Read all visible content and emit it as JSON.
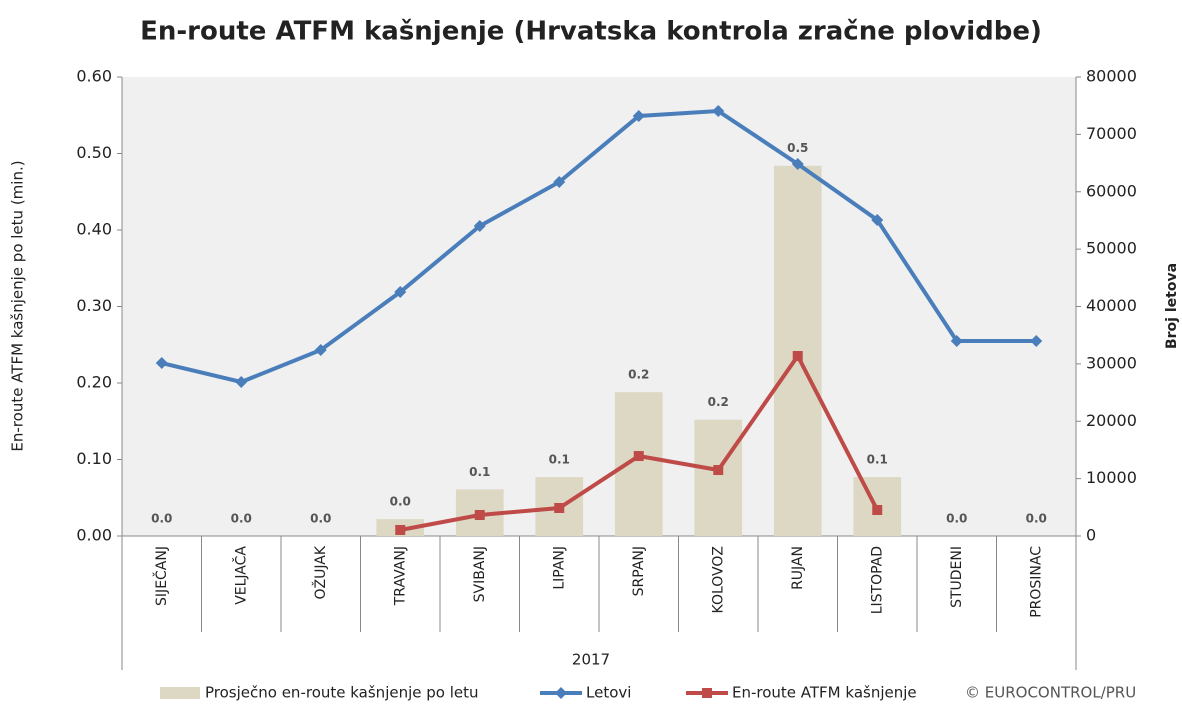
{
  "chart_data": {
    "type": "bar",
    "title": "En-route ATFM kašnjenje (Hrvatska kontrola zračne plovidbe)",
    "ylabel": "En-route ATFM kašnjenje po letu (min.)",
    "y2label": "Broj letova",
    "group_label": "2017",
    "footer": "© EUROCONTROL/PRU",
    "categories": [
      "SIJEČANJ",
      "VELJAČA",
      "OŽUJAK",
      "TRAVANJ",
      "SVIBANJ",
      "LIPANJ",
      "SRPANJ",
      "KOLOVOZ",
      "RUJAN",
      "LISTOPAD",
      "STUDENI",
      "PROSINAC"
    ],
    "series": [
      {
        "name": "Prosječno en-route kašnjenje po letu",
        "type": "bar",
        "color": "#ddd8c4",
        "values": [
          0,
          0,
          0,
          0.022,
          0.061,
          0.077,
          0.188,
          0.152,
          0.484,
          0.077,
          0,
          0
        ],
        "value_labels": [
          "0.0",
          "0.0",
          "0.0",
          "0.0",
          "0.1",
          "0.1",
          "0.2",
          "0.2",
          "0.5",
          "0.1",
          "0.0",
          "0.0"
        ]
      },
      {
        "name": "Letovi",
        "type": "line",
        "axis": "y2",
        "color": "#4a7ebb",
        "marker": "diamond",
        "values": [
          30150,
          26840,
          32420,
          42530,
          54030,
          61700,
          73200,
          74070,
          64840,
          55080,
          33990,
          33990
        ]
      },
      {
        "name": "En-route ATFM kašnjenje",
        "type": "line",
        "axis": "y2",
        "color": "#be4b48",
        "marker": "square",
        "values": [
          null,
          null,
          null,
          1050,
          3660,
          4880,
          13940,
          11500,
          31370,
          4530,
          null,
          null
        ]
      }
    ],
    "ylim": [
      0,
      0.6
    ],
    "yticks": [
      {
        "value": 0,
        "label": "0.00"
      },
      {
        "value": 0.1,
        "label": "0.10"
      },
      {
        "value": 0.2,
        "label": "0.20"
      },
      {
        "value": 0.3,
        "label": "0.30"
      },
      {
        "value": 0.4,
        "label": "0.40"
      },
      {
        "value": 0.5,
        "label": "0.50"
      },
      {
        "value": 0.6,
        "label": "0.60"
      }
    ],
    "y2lim": [
      0,
      80000
    ],
    "y2ticks": [
      0,
      10000,
      20000,
      30000,
      40000,
      50000,
      60000,
      70000,
      80000
    ],
    "legend": "bottom"
  }
}
